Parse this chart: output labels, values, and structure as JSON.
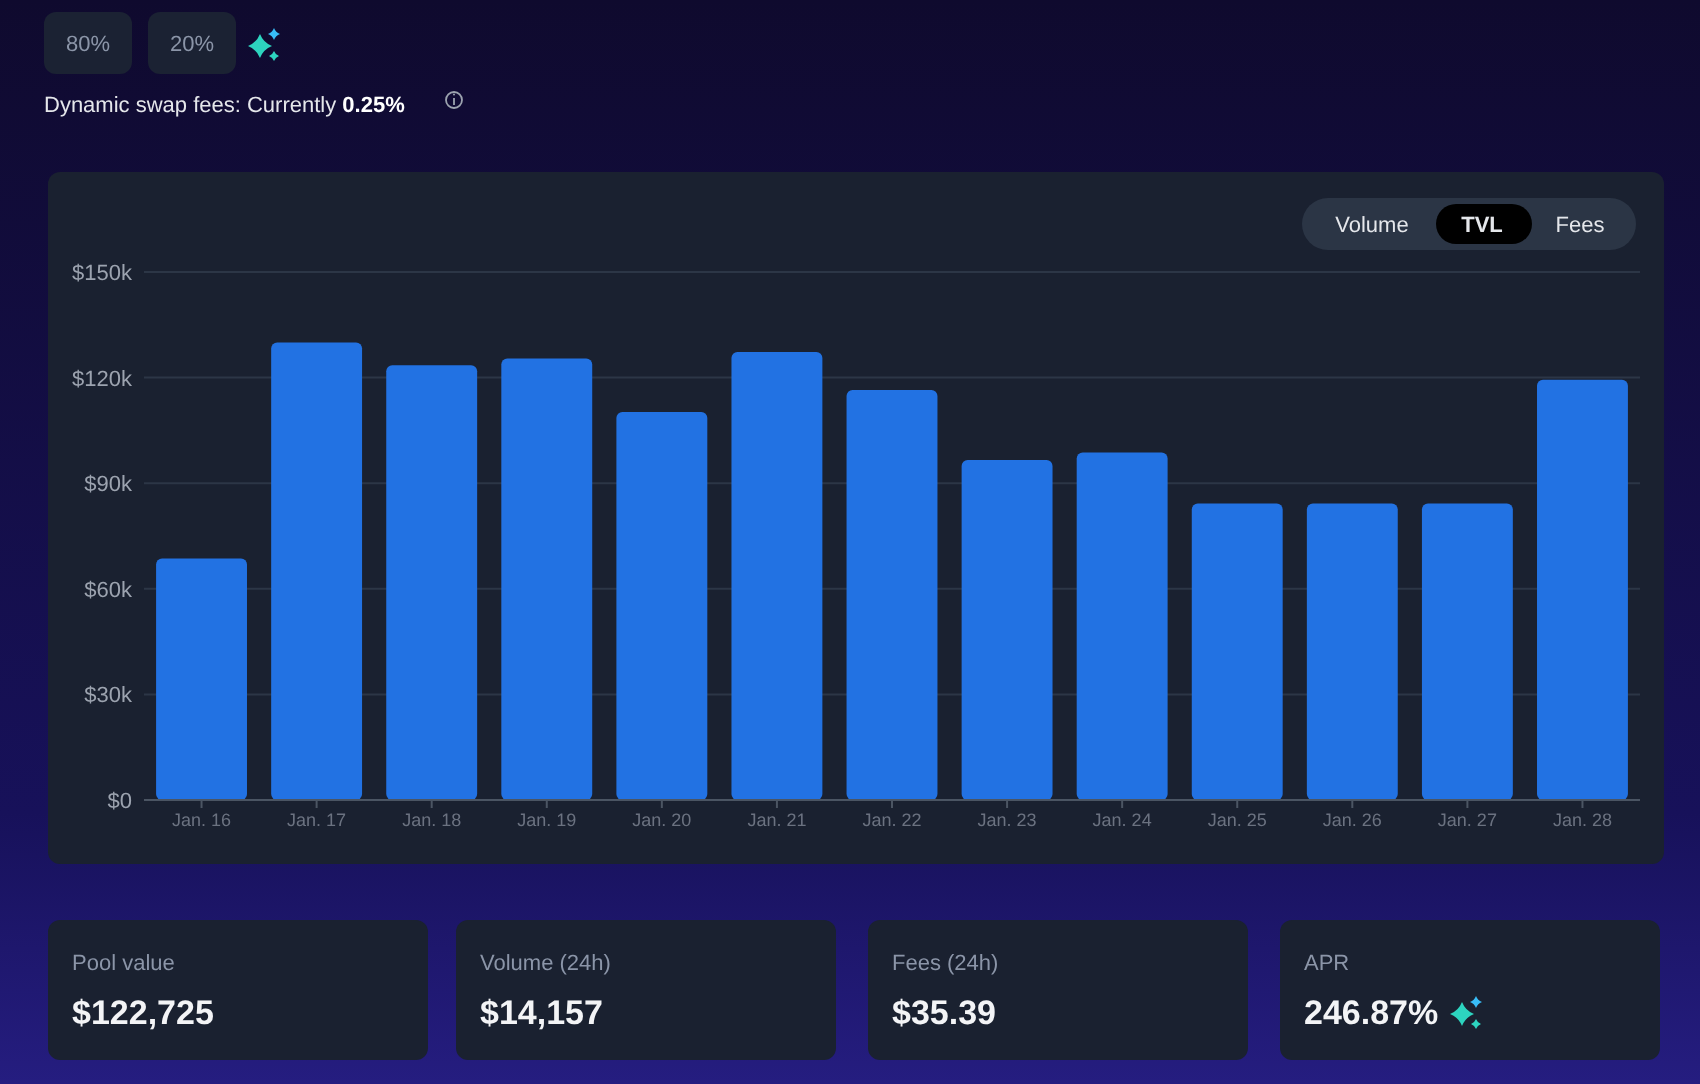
{
  "chart_data": {
    "type": "bar",
    "subtitle": "Dynamic swap fees: Currently 0.25%",
    "categories": [
      "Jan. 16",
      "Jan. 17",
      "Jan. 18",
      "Jan. 19",
      "Jan. 20",
      "Jan. 21",
      "Jan. 22",
      "Jan. 23",
      "Jan. 24",
      "Jan. 25",
      "Jan. 26",
      "Jan. 27",
      "Jan. 28"
    ],
    "values": [
      68600,
      130000,
      123500,
      125400,
      110200,
      127300,
      116500,
      96600,
      98700,
      84200,
      84200,
      84200,
      119400
    ],
    "color": "#2272e3",
    "ylim": [
      0,
      150000
    ],
    "yticks": [
      {
        "value": 0,
        "label": "$0"
      },
      {
        "value": 30000,
        "label": "$30k"
      },
      {
        "value": 60000,
        "label": "$60k"
      },
      {
        "value": 90000,
        "label": "$90k"
      },
      {
        "value": 120000,
        "label": "$120k"
      },
      {
        "value": 150000,
        "label": "$150k"
      }
    ],
    "grid": "y",
    "annotations": [
      "80%",
      "20%",
      "Volume",
      "TVL",
      "Fees",
      "Pool value",
      "$122,725",
      "Volume (24h)",
      "$14,157",
      "Fees (24h)",
      "$35.39",
      "APR",
      "246.87%"
    ]
  }
}
